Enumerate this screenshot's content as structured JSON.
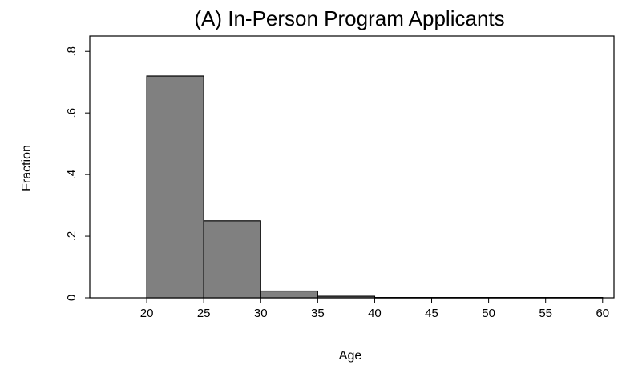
{
  "chart_data": {
    "type": "bar",
    "title": "(A) In-Person Program Applicants",
    "xlabel": "Age",
    "ylabel": "Fraction",
    "xlim": [
      15,
      61
    ],
    "ylim": [
      0,
      0.85
    ],
    "bin_width": 5,
    "bins": [
      {
        "start": 20,
        "end": 25,
        "value": 0.72
      },
      {
        "start": 25,
        "end": 30,
        "value": 0.25
      },
      {
        "start": 30,
        "end": 35,
        "value": 0.022
      },
      {
        "start": 35,
        "end": 40,
        "value": 0.005
      },
      {
        "start": 40,
        "end": 45,
        "value": 0.001
      },
      {
        "start": 45,
        "end": 50,
        "value": 0.001
      },
      {
        "start": 50,
        "end": 55,
        "value": 0.001
      },
      {
        "start": 55,
        "end": 60,
        "value": 0.001
      }
    ],
    "x_ticks": [
      {
        "value": 20,
        "label": "20"
      },
      {
        "value": 25,
        "label": "25"
      },
      {
        "value": 30,
        "label": "30"
      },
      {
        "value": 35,
        "label": "35"
      },
      {
        "value": 40,
        "label": "40"
      },
      {
        "value": 45,
        "label": "45"
      },
      {
        "value": 50,
        "label": "50"
      },
      {
        "value": 55,
        "label": "55"
      },
      {
        "value": 60,
        "label": "60"
      }
    ],
    "y_ticks": [
      {
        "value": 0,
        "label": "0"
      },
      {
        "value": 0.2,
        "label": ".2"
      },
      {
        "value": 0.4,
        "label": ".4"
      },
      {
        "value": 0.6,
        "label": ".6"
      },
      {
        "value": 0.8,
        "label": ".8"
      }
    ],
    "grid": false,
    "colors": {
      "bar_fill": "#808080",
      "bar_stroke": "#000000"
    }
  }
}
